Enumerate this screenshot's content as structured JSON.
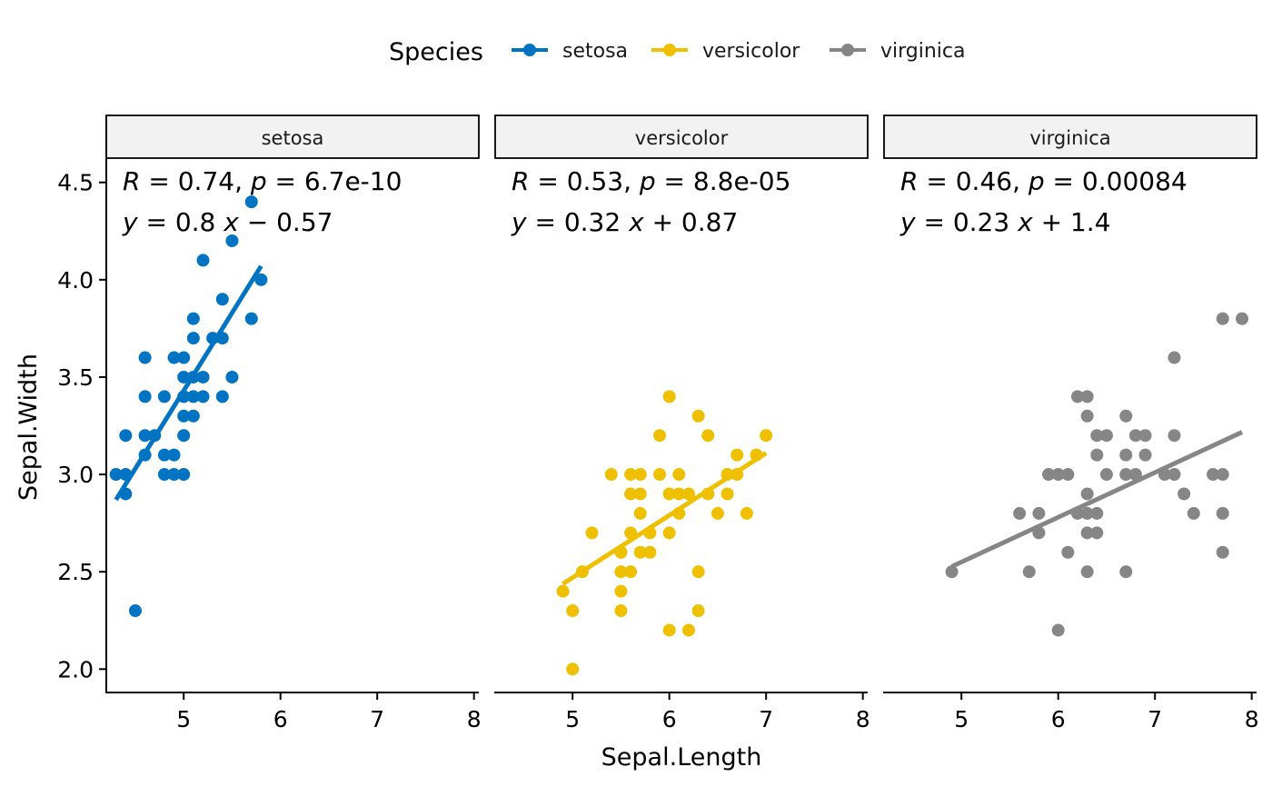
{
  "chart_data": {
    "type": "scatter",
    "xlabel": "Sepal.Length",
    "ylabel": "Sepal.Width",
    "xlim": [
      4.2,
      8.05
    ],
    "ylim": [
      1.88,
      4.62
    ],
    "x_ticks": [
      5,
      6,
      7,
      8
    ],
    "y_ticks": [
      2.0,
      2.5,
      3.0,
      3.5,
      4.0,
      4.5
    ],
    "y_tick_labels": [
      "2.0",
      "2.5",
      "3.0",
      "3.5",
      "4.0",
      "4.5"
    ],
    "x_tick_labels": [
      "5",
      "6",
      "7",
      "8"
    ],
    "legend": {
      "title": "Species",
      "position": "top",
      "entries": [
        {
          "name": "setosa",
          "color": "#0073C2"
        },
        {
          "name": "versicolor",
          "color": "#EFC000"
        },
        {
          "name": "virginica",
          "color": "#868686"
        }
      ]
    },
    "panels": [
      {
        "name": "setosa",
        "color": "#0073C2",
        "stat_line1": [
          "R",
          " = 0.74, ",
          "p",
          " = 6.7e-10"
        ],
        "stat_line2": [
          "y",
          " = 0.8 ",
          "x",
          " − 0.57"
        ],
        "fit": {
          "slope": 0.8,
          "intercept": -0.57,
          "x_range": [
            4.3,
            5.8
          ]
        },
        "points": [
          [
            4.3,
            3.0
          ],
          [
            4.4,
            3.0
          ],
          [
            4.4,
            3.2
          ],
          [
            4.4,
            2.9
          ],
          [
            4.5,
            2.3
          ],
          [
            4.6,
            3.6
          ],
          [
            4.6,
            3.4
          ],
          [
            4.6,
            3.2
          ],
          [
            4.6,
            3.1
          ],
          [
            4.7,
            3.2
          ],
          [
            4.8,
            3.4
          ],
          [
            4.8,
            3.1
          ],
          [
            4.8,
            3.0
          ],
          [
            4.9,
            3.6
          ],
          [
            4.9,
            3.1
          ],
          [
            4.9,
            3.0
          ],
          [
            5.0,
            3.6
          ],
          [
            5.0,
            3.5
          ],
          [
            5.0,
            3.4
          ],
          [
            5.0,
            3.3
          ],
          [
            5.0,
            3.2
          ],
          [
            5.0,
            3.0
          ],
          [
            5.1,
            3.8
          ],
          [
            5.1,
            3.7
          ],
          [
            5.1,
            3.5
          ],
          [
            5.1,
            3.4
          ],
          [
            5.1,
            3.3
          ],
          [
            5.2,
            4.1
          ],
          [
            5.2,
            3.5
          ],
          [
            5.2,
            3.4
          ],
          [
            5.3,
            3.7
          ],
          [
            5.4,
            3.9
          ],
          [
            5.4,
            3.7
          ],
          [
            5.4,
            3.4
          ],
          [
            5.5,
            4.2
          ],
          [
            5.5,
            3.5
          ],
          [
            5.7,
            4.4
          ],
          [
            5.7,
            3.8
          ],
          [
            5.8,
            4.0
          ]
        ]
      },
      {
        "name": "versicolor",
        "color": "#EFC000",
        "stat_line1": [
          "R",
          " = 0.53, ",
          "p",
          " = 8.8e-05"
        ],
        "stat_line2": [
          "y",
          " = 0.32 ",
          "x",
          " + 0.87"
        ],
        "fit": {
          "slope": 0.32,
          "intercept": 0.87,
          "x_range": [
            4.9,
            7.0
          ]
        },
        "points": [
          [
            4.9,
            2.4
          ],
          [
            5.0,
            2.3
          ],
          [
            5.0,
            2.0
          ],
          [
            5.1,
            2.5
          ],
          [
            5.2,
            2.7
          ],
          [
            5.4,
            3.0
          ],
          [
            5.5,
            2.6
          ],
          [
            5.5,
            2.5
          ],
          [
            5.5,
            2.4
          ],
          [
            5.5,
            2.3
          ],
          [
            5.6,
            3.0
          ],
          [
            5.6,
            2.9
          ],
          [
            5.6,
            2.7
          ],
          [
            5.6,
            2.5
          ],
          [
            5.7,
            3.0
          ],
          [
            5.7,
            2.9
          ],
          [
            5.7,
            2.8
          ],
          [
            5.7,
            2.6
          ],
          [
            5.8,
            2.7
          ],
          [
            5.8,
            2.6
          ],
          [
            5.9,
            3.2
          ],
          [
            5.9,
            3.0
          ],
          [
            6.0,
            3.4
          ],
          [
            6.0,
            2.9
          ],
          [
            6.0,
            2.7
          ],
          [
            6.0,
            2.2
          ],
          [
            6.1,
            3.0
          ],
          [
            6.1,
            2.9
          ],
          [
            6.1,
            2.8
          ],
          [
            6.2,
            2.9
          ],
          [
            6.2,
            2.2
          ],
          [
            6.3,
            3.3
          ],
          [
            6.3,
            2.5
          ],
          [
            6.3,
            2.3
          ],
          [
            6.4,
            3.2
          ],
          [
            6.4,
            2.9
          ],
          [
            6.5,
            2.8
          ],
          [
            6.6,
            3.0
          ],
          [
            6.6,
            2.9
          ],
          [
            6.7,
            3.1
          ],
          [
            6.7,
            3.0
          ],
          [
            6.8,
            2.8
          ],
          [
            6.9,
            3.1
          ],
          [
            7.0,
            3.2
          ]
        ]
      },
      {
        "name": "virginica",
        "color": "#868686",
        "stat_line1": [
          "R",
          " = 0.46, ",
          "p",
          " = 0.00084"
        ],
        "stat_line2": [
          "y",
          " = 0.23 ",
          "x",
          " + 1.4"
        ],
        "fit": {
          "slope": 0.23,
          "intercept": 1.4,
          "x_range": [
            4.9,
            7.9
          ]
        },
        "points": [
          [
            4.9,
            2.5
          ],
          [
            5.6,
            2.8
          ],
          [
            5.7,
            2.5
          ],
          [
            5.8,
            2.8
          ],
          [
            5.8,
            2.7
          ],
          [
            5.9,
            3.0
          ],
          [
            6.0,
            3.0
          ],
          [
            6.0,
            2.2
          ],
          [
            6.1,
            3.0
          ],
          [
            6.1,
            2.6
          ],
          [
            6.2,
            3.4
          ],
          [
            6.2,
            2.8
          ],
          [
            6.3,
            3.4
          ],
          [
            6.3,
            3.3
          ],
          [
            6.3,
            2.9
          ],
          [
            6.3,
            2.8
          ],
          [
            6.3,
            2.7
          ],
          [
            6.3,
            2.5
          ],
          [
            6.4,
            3.2
          ],
          [
            6.4,
            3.1
          ],
          [
            6.4,
            2.8
          ],
          [
            6.4,
            2.7
          ],
          [
            6.5,
            3.2
          ],
          [
            6.5,
            3.0
          ],
          [
            6.7,
            3.3
          ],
          [
            6.7,
            3.1
          ],
          [
            6.7,
            3.0
          ],
          [
            6.7,
            2.5
          ],
          [
            6.8,
            3.2
          ],
          [
            6.8,
            3.0
          ],
          [
            6.9,
            3.2
          ],
          [
            6.9,
            3.1
          ],
          [
            7.1,
            3.0
          ],
          [
            7.2,
            3.6
          ],
          [
            7.2,
            3.2
          ],
          [
            7.2,
            3.0
          ],
          [
            7.3,
            2.9
          ],
          [
            7.4,
            2.8
          ],
          [
            7.6,
            3.0
          ],
          [
            7.7,
            3.8
          ],
          [
            7.7,
            3.0
          ],
          [
            7.7,
            2.8
          ],
          [
            7.7,
            2.6
          ],
          [
            7.9,
            3.8
          ]
        ]
      }
    ]
  }
}
